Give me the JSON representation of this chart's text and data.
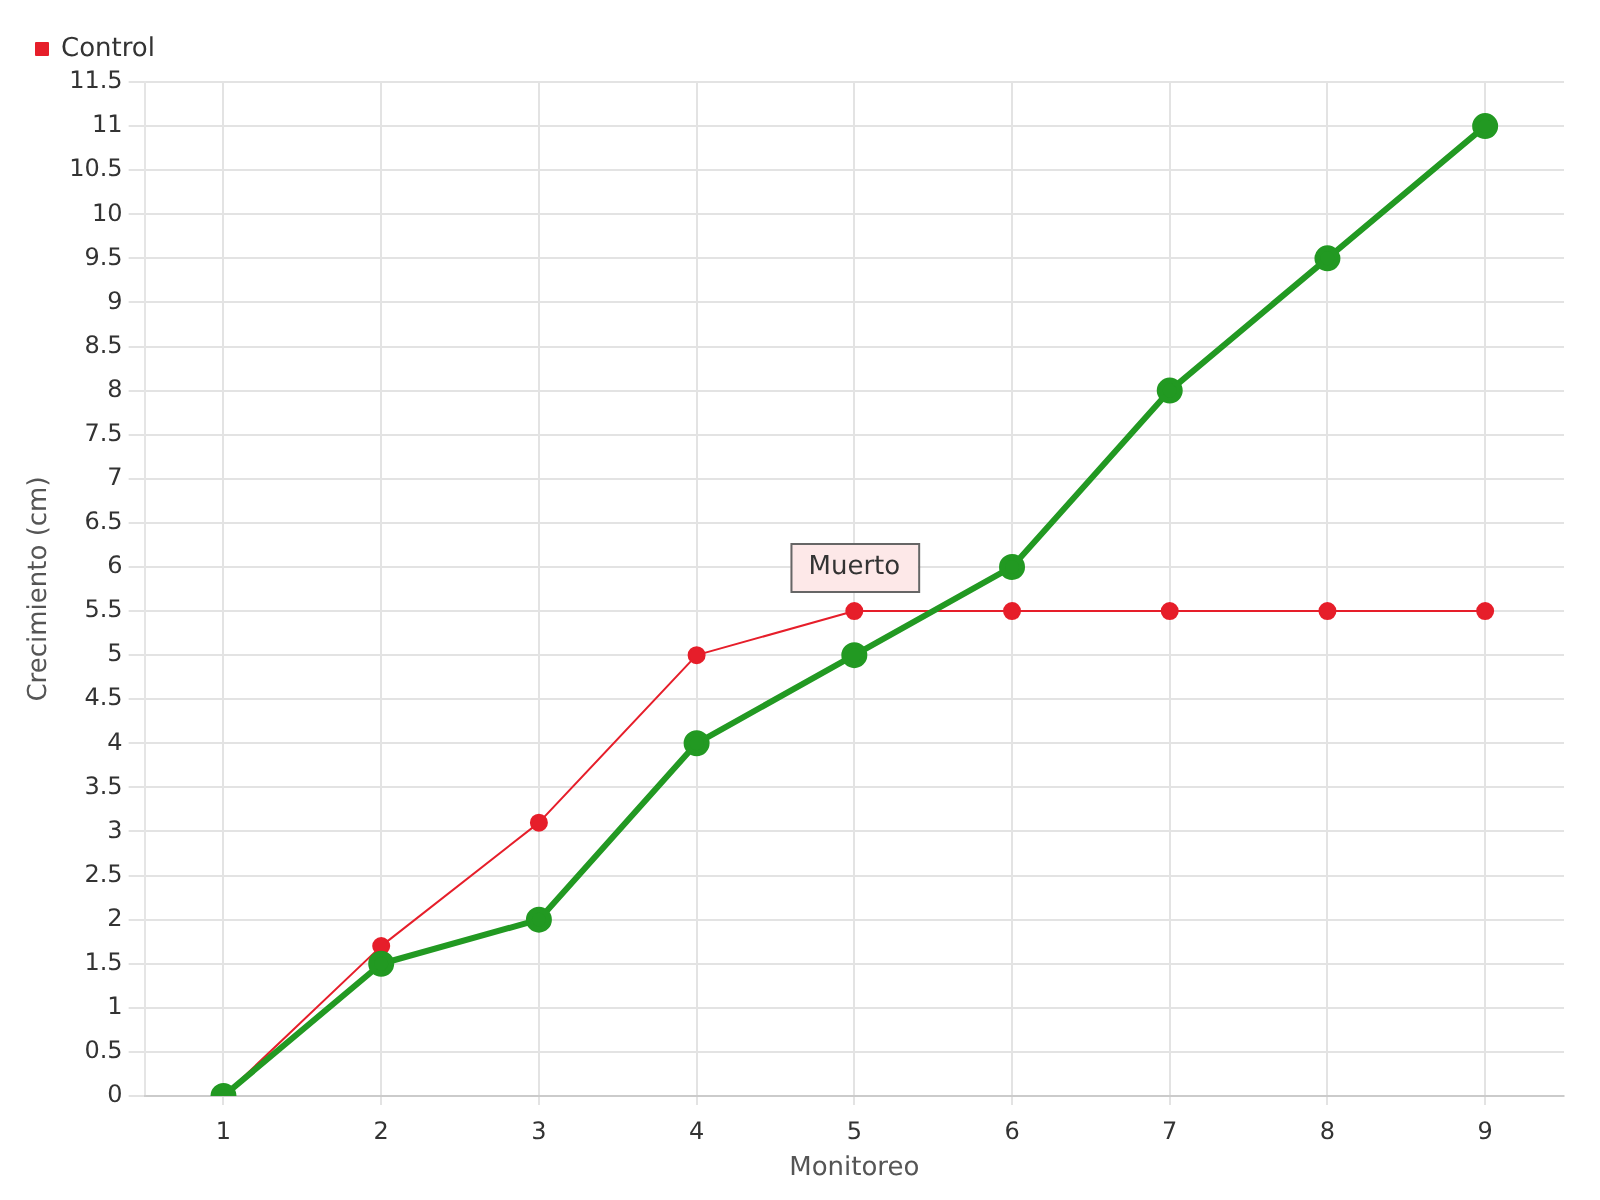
{
  "chart_data": {
    "type": "line",
    "xlabel": "Monitoreo",
    "ylabel": "Crecimiento (cm)",
    "categories": [
      "1",
      "2",
      "3",
      "4",
      "5",
      "6",
      "7",
      "8",
      "9"
    ],
    "series": [
      {
        "color": "#229922",
        "values": [
          0,
          1.5,
          2,
          4,
          5,
          6,
          8,
          9.5,
          11
        ]
      },
      {
        "name": "Control",
        "color": "#e61e2a",
        "values": [
          0,
          1.7,
          3.1,
          5,
          5.5,
          5.5,
          5.5,
          5.5,
          5.5
        ]
      }
    ],
    "ylim": [
      0,
      11.5
    ],
    "yticks": [
      0,
      0.5,
      1,
      1.5,
      2,
      2.5,
      3,
      3.5,
      4,
      4.5,
      5,
      5.5,
      6,
      6.5,
      7,
      7.5,
      8,
      8.5,
      9,
      9.5,
      10,
      10.5,
      11,
      11.5
    ],
    "grid": true,
    "legend": "top left",
    "marker": "circle",
    "annotations": [
      {
        "text": "Muerto",
        "x": "5",
        "y": 5.5
      }
    ]
  }
}
